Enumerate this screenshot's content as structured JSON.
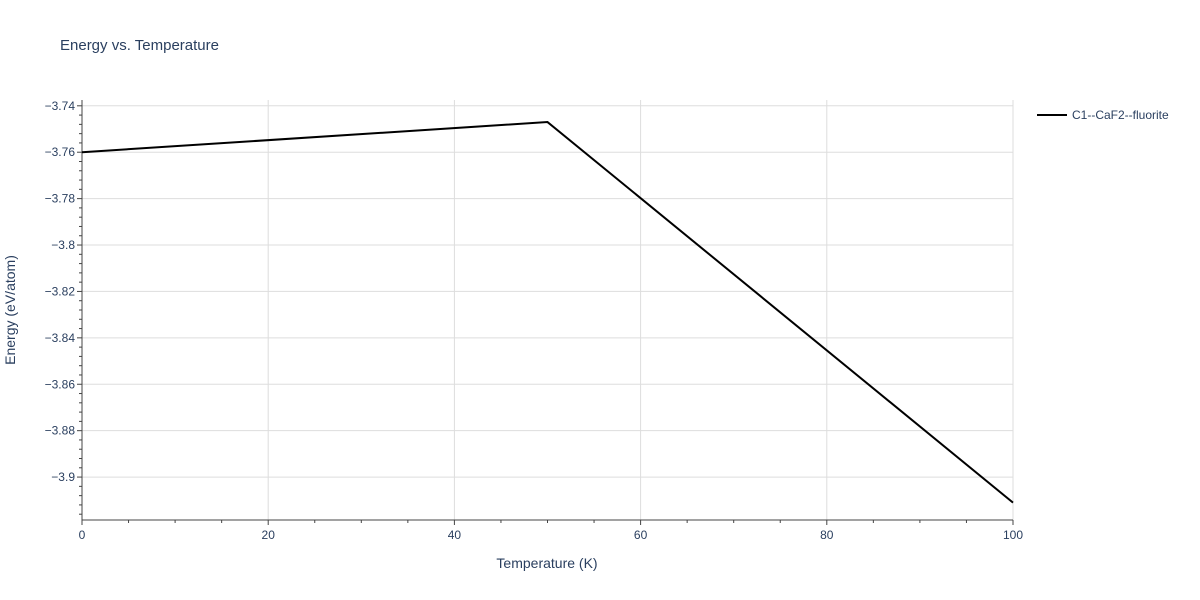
{
  "chart_data": {
    "type": "line",
    "title": "Energy vs. Temperature",
    "xlabel": "Temperature (K)",
    "ylabel": "Energy (eV/atom)",
    "xlim": [
      0,
      100
    ],
    "ylim": [
      -3.9185,
      -3.7375
    ],
    "x_ticks": [
      0,
      20,
      40,
      60,
      80,
      100
    ],
    "x_tick_labels": [
      "0",
      "20",
      "40",
      "60",
      "80",
      "100"
    ],
    "y_ticks": [
      -3.74,
      -3.76,
      -3.78,
      -3.8,
      -3.82,
      -3.84,
      -3.86,
      -3.88,
      -3.9
    ],
    "y_tick_labels": [
      "−3.74",
      "−3.76",
      "−3.78",
      "−3.8",
      "−3.82",
      "−3.84",
      "−3.86",
      "−3.88",
      "−3.9"
    ],
    "grid": true,
    "legend_position": "top-right",
    "series": [
      {
        "name": "C1--CaF2--fluorite",
        "color": "#000000",
        "x": [
          0,
          50,
          100
        ],
        "y": [
          -3.76,
          -3.747,
          -3.911
        ]
      }
    ]
  }
}
